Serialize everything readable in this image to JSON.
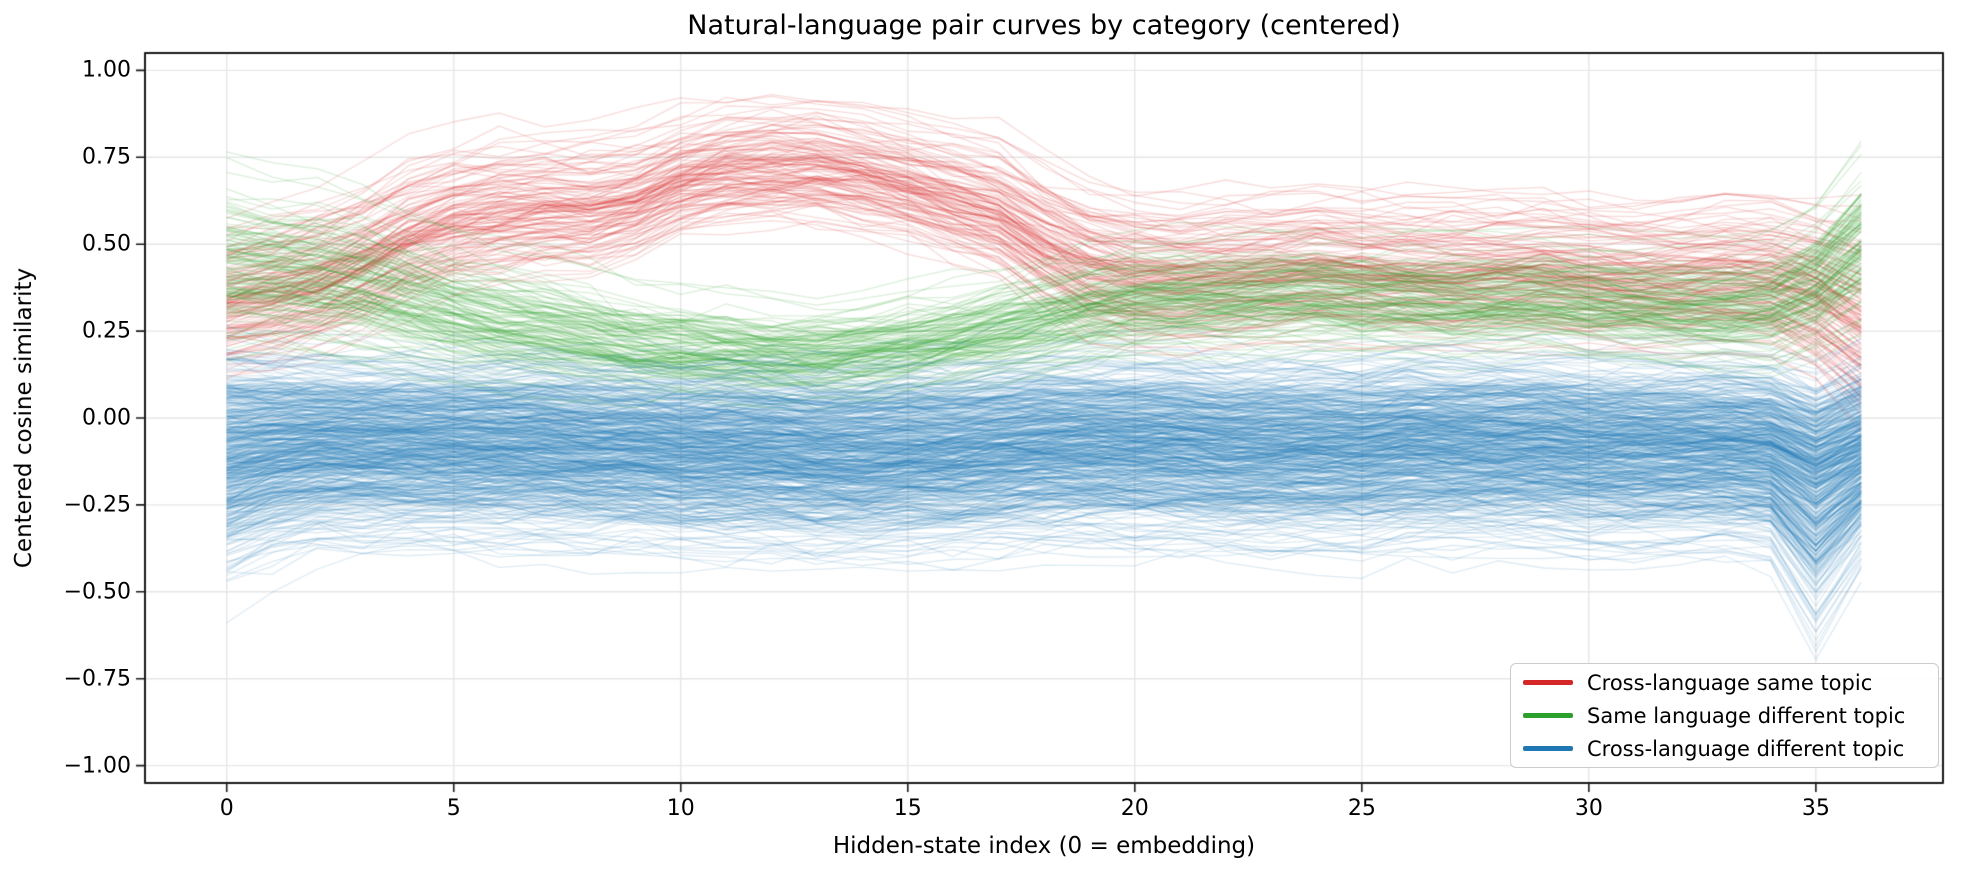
{
  "title": "Natural-language pair curves by category (centered)",
  "axes": {
    "xlabel": "Hidden-state index (0 = embedding)",
    "ylabel": "Centered cosine similarity",
    "x_tick_labels": [
      "0",
      "5",
      "10",
      "15",
      "20",
      "25",
      "30",
      "35"
    ],
    "x_tick_values": [
      0,
      5,
      10,
      15,
      20,
      25,
      30,
      35
    ],
    "y_tick_labels": [
      "1.00",
      "0.75",
      "0.50",
      "0.25",
      "0.00",
      "−0.25",
      "−0.50",
      "−0.75",
      "−1.00"
    ],
    "y_tick_values": [
      1.0,
      0.75,
      0.5,
      0.25,
      0.0,
      -0.25,
      -0.5,
      -0.75,
      -1.0
    ],
    "xlim": [
      -1.8,
      37.8
    ],
    "ylim": [
      -1.05,
      1.05
    ],
    "grid": true,
    "grid_color": "#e6e6e6",
    "spine_color": "#1a1a1a"
  },
  "legend": {
    "position": "lower right"
  },
  "chart_data": {
    "type": "line",
    "description": "Ensemble of per-pair cosine-similarity curves across hidden-state layers; three categories drawn as translucent line bundles. Bundles are characterized by per-layer mean and spread.",
    "x": [
      0,
      1,
      2,
      3,
      4,
      5,
      6,
      7,
      8,
      9,
      10,
      11,
      12,
      13,
      14,
      15,
      16,
      17,
      18,
      19,
      20,
      21,
      22,
      23,
      24,
      25,
      26,
      27,
      28,
      29,
      30,
      31,
      32,
      33,
      34,
      35,
      36
    ],
    "title": "Natural-language pair curves by category (centered)",
    "xlabel": "Hidden-state index (0 = embedding)",
    "ylabel": "Centered cosine similarity",
    "series": [
      {
        "name": "Cross-language same topic",
        "color": "#d62728",
        "n_curves": 130,
        "alpha": 0.17,
        "mean": [
          0.32,
          0.35,
          0.39,
          0.45,
          0.52,
          0.57,
          0.59,
          0.6,
          0.6,
          0.63,
          0.68,
          0.71,
          0.72,
          0.72,
          0.7,
          0.67,
          0.63,
          0.59,
          0.51,
          0.44,
          0.41,
          0.4,
          0.41,
          0.42,
          0.43,
          0.42,
          0.41,
          0.41,
          0.42,
          0.42,
          0.41,
          0.4,
          0.4,
          0.41,
          0.4,
          0.35,
          0.27
        ],
        "spread": [
          0.1,
          0.1,
          0.1,
          0.1,
          0.1,
          0.095,
          0.095,
          0.09,
          0.09,
          0.085,
          0.08,
          0.08,
          0.08,
          0.08,
          0.08,
          0.08,
          0.085,
          0.09,
          0.095,
          0.1,
          0.1,
          0.1,
          0.1,
          0.1,
          0.1,
          0.1,
          0.1,
          0.1,
          0.1,
          0.1,
          0.1,
          0.1,
          0.1,
          0.1,
          0.105,
          0.115,
          0.14
        ],
        "dip": [
          0,
          0,
          0,
          0,
          0,
          0,
          0,
          0,
          0,
          0,
          0,
          0,
          0,
          0,
          0,
          0,
          0,
          0,
          0,
          0,
          0,
          0,
          0,
          0,
          0,
          0,
          0,
          0,
          0,
          0,
          0,
          0,
          0,
          0,
          0,
          0,
          0
        ]
      },
      {
        "name": "Same language different topic",
        "color": "#2ca02c",
        "n_curves": 130,
        "alpha": 0.17,
        "mean": [
          0.46,
          0.45,
          0.43,
          0.4,
          0.36,
          0.32,
          0.29,
          0.27,
          0.25,
          0.22,
          0.21,
          0.2,
          0.19,
          0.19,
          0.2,
          0.22,
          0.24,
          0.27,
          0.3,
          0.33,
          0.35,
          0.36,
          0.36,
          0.37,
          0.37,
          0.36,
          0.36,
          0.35,
          0.35,
          0.36,
          0.35,
          0.34,
          0.33,
          0.33,
          0.34,
          0.4,
          0.52
        ],
        "spread": [
          0.12,
          0.11,
          0.11,
          0.105,
          0.1,
          0.095,
          0.09,
          0.085,
          0.075,
          0.07,
          0.065,
          0.065,
          0.06,
          0.06,
          0.06,
          0.065,
          0.065,
          0.07,
          0.075,
          0.075,
          0.075,
          0.075,
          0.075,
          0.075,
          0.075,
          0.075,
          0.075,
          0.075,
          0.075,
          0.075,
          0.075,
          0.075,
          0.075,
          0.075,
          0.08,
          0.09,
          0.115
        ],
        "dip": [
          0,
          0,
          0,
          0,
          0,
          0,
          0,
          0,
          0,
          0,
          0,
          0,
          0,
          0,
          0,
          0,
          0,
          0,
          0,
          0,
          0,
          0,
          0,
          0,
          0,
          0,
          0,
          0,
          0,
          0,
          0,
          0,
          0,
          0,
          0,
          0,
          0
        ]
      },
      {
        "name": "Cross-language different topic",
        "color": "#1f77b4",
        "n_curves": 520,
        "alpha": 0.15,
        "mean": [
          -0.11,
          -0.09,
          -0.08,
          -0.08,
          -0.08,
          -0.08,
          -0.08,
          -0.08,
          -0.09,
          -0.09,
          -0.1,
          -0.1,
          -0.1,
          -0.11,
          -0.11,
          -0.1,
          -0.1,
          -0.09,
          -0.08,
          -0.08,
          -0.08,
          -0.08,
          -0.09,
          -0.09,
          -0.09,
          -0.09,
          -0.08,
          -0.08,
          -0.08,
          -0.08,
          -0.09,
          -0.09,
          -0.09,
          -0.09,
          -0.1,
          -0.16,
          -0.1
        ],
        "spread": [
          0.14,
          0.125,
          0.115,
          0.115,
          0.115,
          0.115,
          0.115,
          0.115,
          0.115,
          0.115,
          0.115,
          0.115,
          0.115,
          0.115,
          0.115,
          0.115,
          0.115,
          0.115,
          0.115,
          0.115,
          0.115,
          0.115,
          0.115,
          0.115,
          0.115,
          0.115,
          0.115,
          0.115,
          0.115,
          0.115,
          0.115,
          0.115,
          0.115,
          0.115,
          0.115,
          0.12,
          0.12
        ],
        "dip": [
          0,
          0,
          0,
          0,
          0,
          0,
          0,
          0,
          0,
          0,
          0,
          0,
          0,
          0,
          0,
          0,
          0,
          0,
          0,
          0,
          0,
          0,
          0,
          0,
          0,
          0,
          0,
          0,
          0,
          0,
          0,
          0,
          0,
          0,
          0,
          0.06,
          0
        ]
      }
    ]
  }
}
